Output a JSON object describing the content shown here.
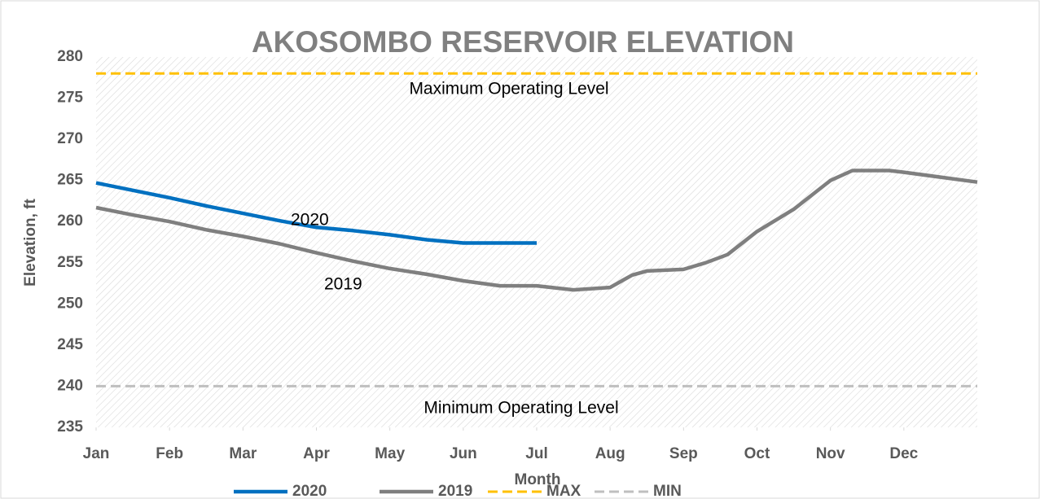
{
  "chart_data": {
    "type": "line",
    "title": "AKOSOMBO RESERVOIR ELEVATION",
    "xlabel": "Month",
    "ylabel": "Elevation, ft",
    "xlim": [
      0,
      12
    ],
    "xticks": [
      {
        "value": 0,
        "label": "Jan"
      },
      {
        "value": 1,
        "label": "Feb"
      },
      {
        "value": 2,
        "label": "Mar"
      },
      {
        "value": 3,
        "label": "Apr"
      },
      {
        "value": 4,
        "label": "May"
      },
      {
        "value": 5,
        "label": "Jun"
      },
      {
        "value": 6,
        "label": "Jul"
      },
      {
        "value": 7,
        "label": "Aug"
      },
      {
        "value": 8,
        "label": "Sep"
      },
      {
        "value": 9,
        "label": "Oct"
      },
      {
        "value": 10,
        "label": "Nov"
      },
      {
        "value": 11,
        "label": "Dec"
      }
    ],
    "ylim": [
      235,
      280
    ],
    "yticks": [
      235,
      240,
      245,
      250,
      255,
      260,
      265,
      270,
      275,
      280
    ],
    "grid": false,
    "legend": "bottom",
    "annotations": [
      "Maximum Operating Level",
      "Minimum Operating Level",
      "2020",
      "2019"
    ],
    "series": [
      {
        "name": "2020",
        "color": "#0070c0",
        "dashed": false,
        "x": [
          0,
          0.5,
          1,
          1.5,
          2,
          2.5,
          3,
          3.5,
          4,
          4.5,
          5,
          5.5,
          6
        ],
        "values": [
          264.7,
          263.8,
          262.9,
          261.9,
          261,
          260.1,
          259.3,
          258.9,
          258.4,
          257.8,
          257.4,
          257.4,
          257.4
        ]
      },
      {
        "name": "2019",
        "color": "#7f7f7f",
        "dashed": false,
        "x": [
          0,
          0.5,
          1,
          1.5,
          2,
          2.5,
          3,
          3.5,
          4,
          4.5,
          5,
          5.5,
          6,
          6.5,
          7,
          7.3,
          7.5,
          8,
          8.3,
          8.6,
          9,
          9.5,
          10,
          10.3,
          10.8,
          11,
          12
        ],
        "values": [
          261.7,
          260.8,
          260,
          259,
          258.2,
          257.3,
          256.2,
          255.2,
          254.3,
          253.6,
          252.8,
          252.2,
          252.2,
          251.7,
          252,
          253.5,
          254,
          254.2,
          255,
          256,
          258.8,
          261.5,
          265,
          266.2,
          266.2,
          266,
          264.8
        ]
      },
      {
        "name": "MAX",
        "color": "#ffc000",
        "dashed": true,
        "x": [
          0,
          12
        ],
        "values": [
          278,
          278
        ]
      },
      {
        "name": "MIN",
        "color": "#bfbfbf",
        "dashed": true,
        "x": [
          0,
          12
        ],
        "values": [
          240,
          240
        ]
      }
    ]
  }
}
